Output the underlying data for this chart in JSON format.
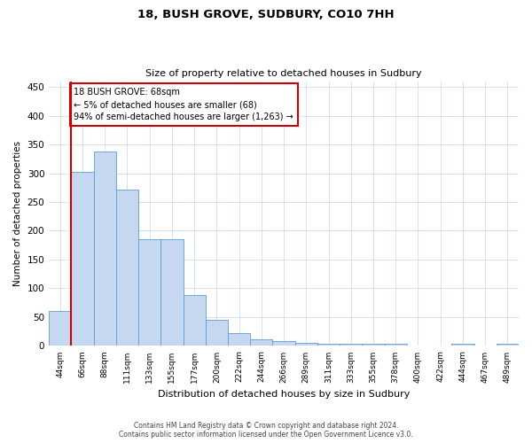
{
  "title1": "18, BUSH GROVE, SUDBURY, CO10 7HH",
  "title2": "Size of property relative to detached houses in Sudbury",
  "xlabel": "Distribution of detached houses by size in Sudbury",
  "ylabel": "Number of detached properties",
  "categories": [
    "44sqm",
    "66sqm",
    "88sqm",
    "111sqm",
    "133sqm",
    "155sqm",
    "177sqm",
    "200sqm",
    "222sqm",
    "244sqm",
    "266sqm",
    "289sqm",
    "311sqm",
    "333sqm",
    "355sqm",
    "378sqm",
    "400sqm",
    "422sqm",
    "444sqm",
    "467sqm",
    "489sqm"
  ],
  "values": [
    60,
    302,
    338,
    272,
    185,
    185,
    88,
    45,
    22,
    12,
    8,
    5,
    3,
    4,
    4,
    3,
    0,
    0,
    3,
    0,
    3
  ],
  "bar_color": "#c5d8f0",
  "bar_edge_color": "#5b9bd5",
  "vline_color": "#cc0000",
  "annotation_text": "18 BUSH GROVE: 68sqm\n← 5% of detached houses are smaller (68)\n94% of semi-detached houses are larger (1,263) →",
  "annotation_box_color": "#ffffff",
  "annotation_box_edge_color": "#cc0000",
  "ylim": [
    0,
    460
  ],
  "yticks": [
    0,
    50,
    100,
    150,
    200,
    250,
    300,
    350,
    400,
    450
  ],
  "footnote": "Contains HM Land Registry data © Crown copyright and database right 2024.\nContains public sector information licensed under the Open Government Licence v3.0.",
  "background_color": "#ffffff",
  "grid_color": "#c8d4e8"
}
